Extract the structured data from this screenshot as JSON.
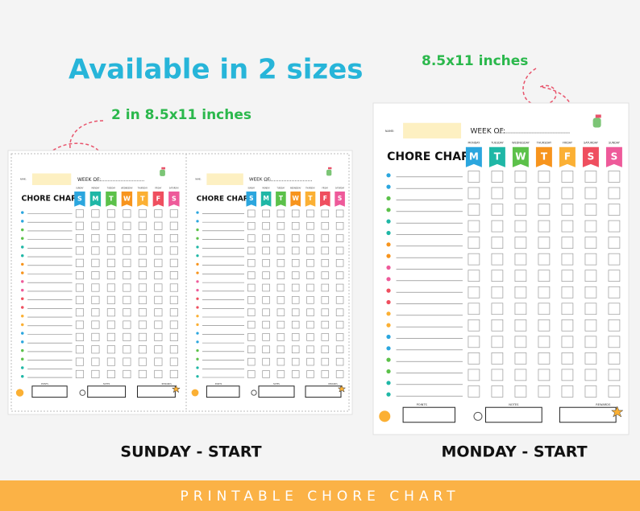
{
  "headline": "Available in 2 sizes",
  "left_caption": "2 in 8.5x11 inches",
  "right_caption": "8.5x11 inches",
  "left_label": "SUNDAY - START",
  "right_label": "MONDAY - START",
  "banner": "PRINTABLE CHORE CHART",
  "sunday_chart": {
    "name_label": "NAME:",
    "week_label": "WEEK OF:",
    "title": "CHORE CHART",
    "days": [
      {
        "letter": "S",
        "name": "SUNDAY"
      },
      {
        "letter": "M",
        "name": "MONDAY"
      },
      {
        "letter": "T",
        "name": "TUESDAY"
      },
      {
        "letter": "W",
        "name": "WEDNESDAY"
      },
      {
        "letter": "T",
        "name": "THURSDAY"
      },
      {
        "letter": "F",
        "name": "FRIDAY"
      },
      {
        "letter": "S",
        "name": "SATURDAY"
      }
    ],
    "footer": [
      "POINTS",
      "NOTES",
      "REWARDS"
    ]
  },
  "monday_chart": {
    "name_label": "NAME:",
    "week_label": "WEEK OF:",
    "title": "CHORE CHART",
    "days": [
      {
        "letter": "M",
        "name": "MONDAY"
      },
      {
        "letter": "T",
        "name": "TUESDAY"
      },
      {
        "letter": "W",
        "name": "WEDNESDAY"
      },
      {
        "letter": "T",
        "name": "THURSDAY"
      },
      {
        "letter": "F",
        "name": "FRIDAY"
      },
      {
        "letter": "S",
        "name": "SATURDAY"
      },
      {
        "letter": "S",
        "name": "SUNDAY"
      }
    ],
    "footer": [
      "POINTS",
      "NOTES",
      "REWARDS"
    ]
  }
}
